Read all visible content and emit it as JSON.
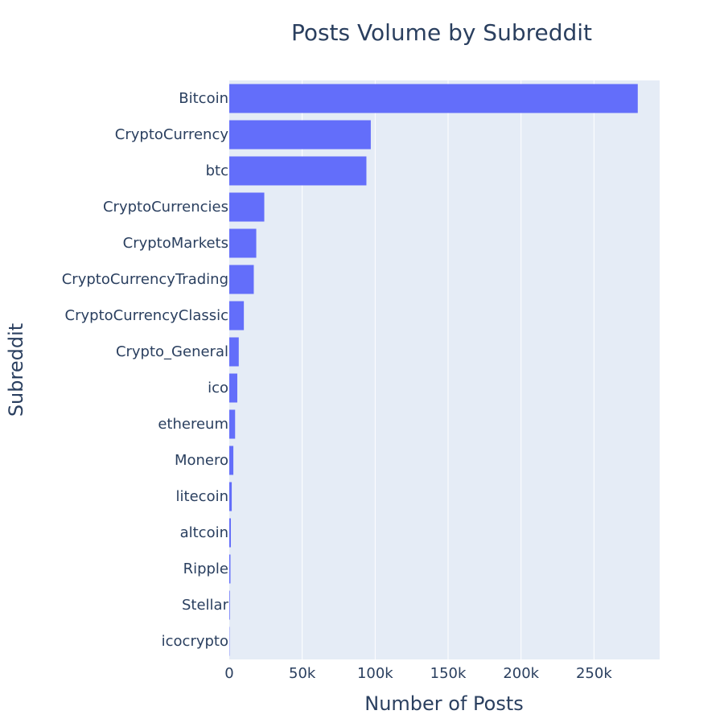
{
  "chart_data": {
    "type": "bar",
    "orientation": "horizontal",
    "title": "Posts Volume by Subreddit",
    "xlabel": "Number of Posts",
    "ylabel": "Subreddit",
    "categories": [
      "Bitcoin",
      "CryptoCurrency",
      "btc",
      "CryptoCurrencies",
      "CryptoMarkets",
      "CryptoCurrencyTrading",
      "CryptoCurrencyClassic",
      "Crypto_General",
      "ico",
      "ethereum",
      "Monero",
      "litecoin",
      "altcoin",
      "Ripple",
      "Stellar",
      "icocrypto"
    ],
    "values": [
      280000,
      97000,
      94000,
      24000,
      18500,
      16800,
      10000,
      6500,
      5500,
      4000,
      2800,
      1700,
      1100,
      800,
      400,
      200
    ],
    "xlim": [
      0,
      295000
    ],
    "xticks": [
      0,
      50000,
      100000,
      150000,
      200000,
      250000
    ],
    "xtick_labels": [
      "0",
      "50k",
      "100k",
      "150k",
      "200k",
      "250k"
    ],
    "grid": true,
    "legend": "none",
    "colors": {
      "bar": "#636efa",
      "plot_bg": "#e5ecf6",
      "grid": "#ffffff",
      "text": "#2a3f5f",
      "paper_bg": "#ffffff"
    }
  }
}
